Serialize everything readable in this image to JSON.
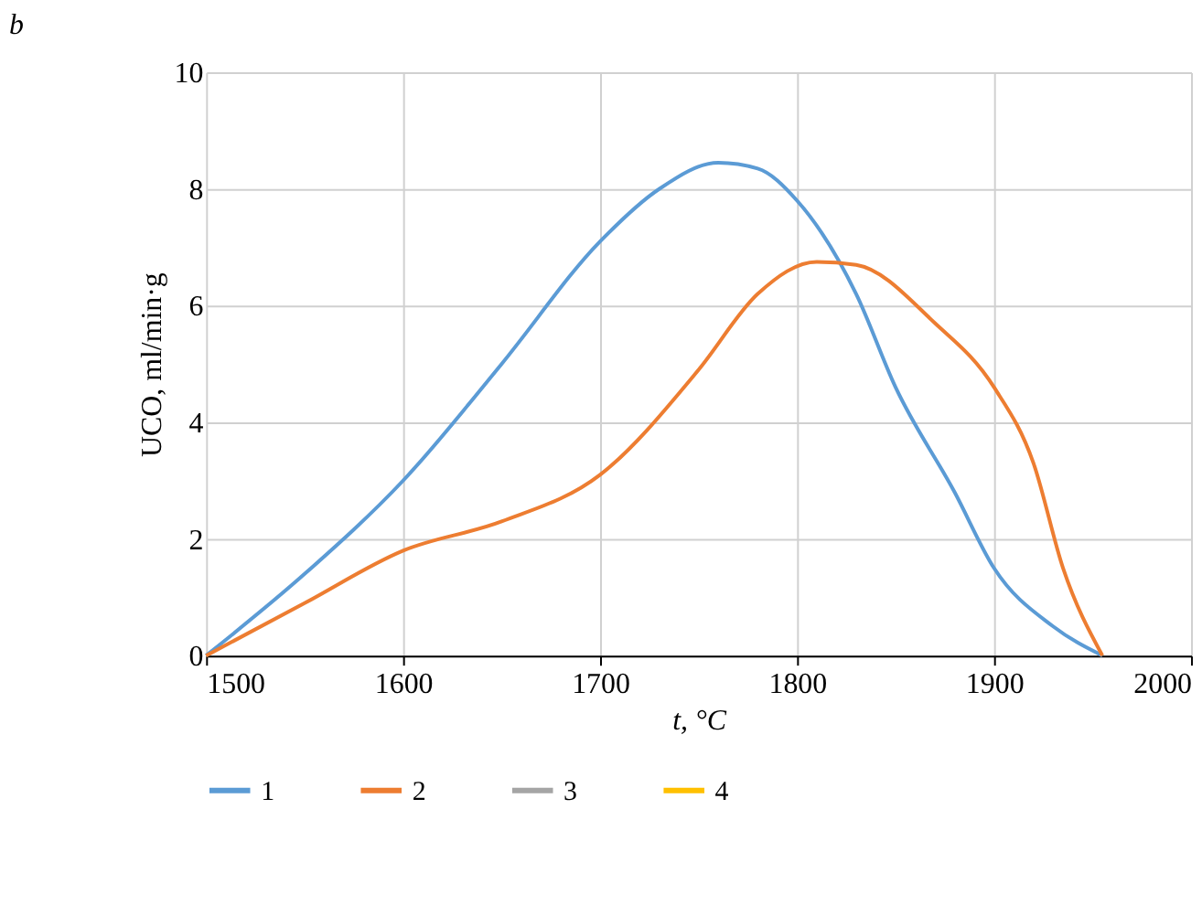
{
  "chart_data": {
    "type": "line",
    "title": "b",
    "xlabel": "t, °C",
    "ylabel": "UCO, ml/min·g",
    "xlim": [
      1500,
      2000
    ],
    "xticks": [
      1500,
      1600,
      1700,
      1800,
      1900,
      2000
    ],
    "ylim": [
      0,
      10
    ],
    "yticks": [
      0,
      2,
      4,
      6,
      8,
      10
    ],
    "grid": true,
    "legend": "bottom",
    "marker": "none",
    "line_style": "solid",
    "series": [
      {
        "name": "1",
        "color": "#5b9bd5",
        "x": [
          1500,
          1550,
          1600,
          1650,
          1700,
          1730,
          1760,
          1780,
          1800,
          1830,
          1850,
          1880,
          1900,
          1930,
          1955
        ],
        "values": [
          0,
          1.4,
          3.0,
          5.0,
          7.1,
          8.0,
          8.45,
          8.35,
          7.8,
          6.2,
          4.6,
          2.8,
          1.5,
          0.5,
          0
        ]
      },
      {
        "name": "2",
        "color": "#ed7d31",
        "x": [
          1500,
          1550,
          1600,
          1650,
          1700,
          1750,
          1780,
          1810,
          1830,
          1870,
          1900,
          1920,
          1935,
          1955
        ],
        "values": [
          0,
          0.9,
          1.8,
          2.3,
          3.1,
          4.9,
          6.2,
          6.75,
          6.7,
          5.7,
          4.6,
          3.3,
          1.5,
          0
        ]
      },
      {
        "name": "3",
        "color": "#a5a5a5"
      },
      {
        "name": "4",
        "color": "#ffc000"
      }
    ]
  }
}
